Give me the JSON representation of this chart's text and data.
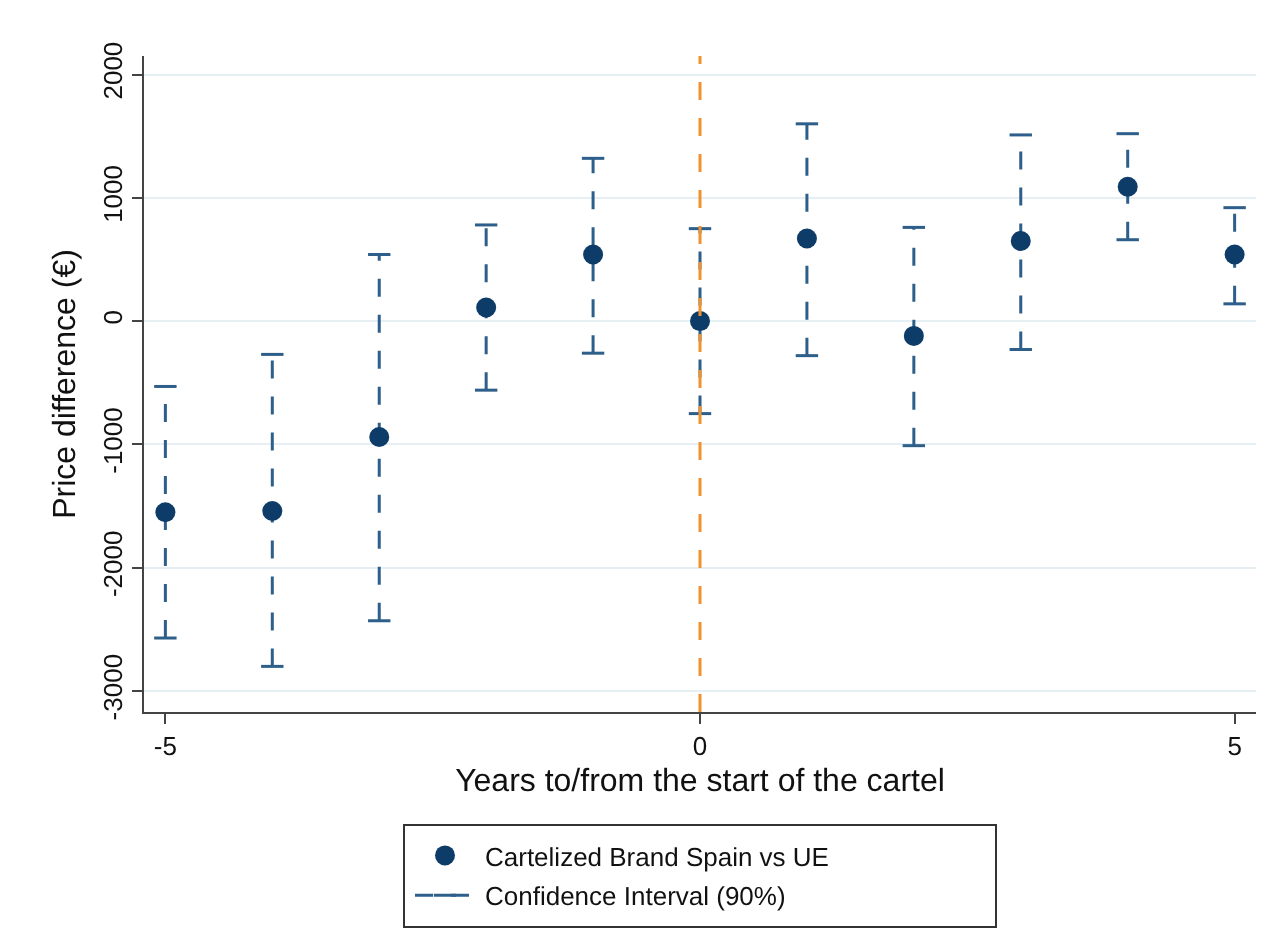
{
  "chart_data": {
    "type": "scatter",
    "xlabel": "Years to/from the start of the cartel",
    "ylabel": "Price difference (€)",
    "x": [
      -5,
      -4,
      -3,
      -2,
      -1,
      0,
      1,
      2,
      3,
      4,
      5
    ],
    "series": [
      {
        "name": "Cartelized Brand Spain vs UE",
        "color": "#0e3c68",
        "values": [
          -1550,
          -1540,
          -940,
          110,
          540,
          0,
          670,
          -120,
          650,
          1090,
          540
        ],
        "errors": [
          [
            -2570,
            -530
          ],
          [
            -2800,
            -270
          ],
          [
            -2430,
            540
          ],
          [
            -560,
            780
          ],
          [
            -260,
            1320
          ],
          [
            -750,
            750
          ],
          [
            -280,
            1600
          ],
          [
            -1010,
            760
          ],
          [
            -230,
            1510
          ],
          [
            660,
            1520
          ],
          [
            140,
            920
          ]
        ]
      }
    ],
    "annotations": [
      "Confidence Interval (90%)"
    ],
    "line_style": "dashed",
    "marker": "circle",
    "xlim": [
      -5.2,
      5.2
    ],
    "xticks": [
      -5,
      0,
      5
    ],
    "ylim": [
      -3170,
      2150
    ],
    "yticks": [
      -3000,
      -2000,
      -1000,
      0,
      1000,
      2000
    ],
    "ref_lines": [
      {
        "axis": "x",
        "value": 0,
        "color": "#f0922e",
        "line_style": "dashed"
      }
    ],
    "grid": "y",
    "legend": "bottom"
  }
}
